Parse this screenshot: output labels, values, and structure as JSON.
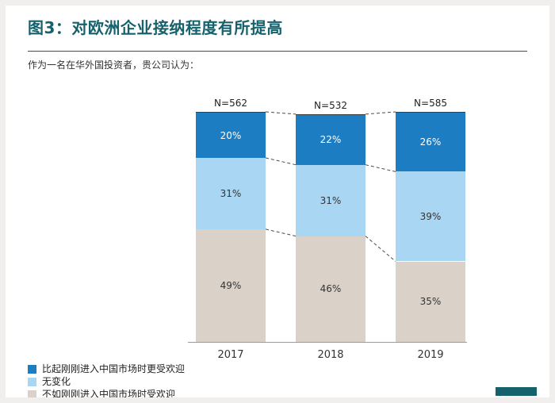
{
  "header": {
    "title": "图3：对欧洲企业接纳程度有所提高",
    "subtitle": "作为一名在华外国投资者，贵公司认为："
  },
  "accent_color": "#16626c",
  "chart_data": {
    "type": "bar",
    "stacked": true,
    "title": "图3：对欧洲企业接纳程度有所提高",
    "xlabel": "",
    "ylabel": "",
    "ylim": [
      0,
      100
    ],
    "grid": false,
    "legend_position": "bottom-left",
    "value_suffix": "%",
    "categories": [
      "2017",
      "2018",
      "2019"
    ],
    "n_labels": [
      "N=562",
      "N=532",
      "N=585"
    ],
    "series": [
      {
        "name": "比起刚刚进入中国市场时更受欢迎",
        "color": "#1d7dc2",
        "label_color": "#ffffff",
        "values": [
          20,
          22,
          26
        ]
      },
      {
        "name": "无变化",
        "color": "#a9d6f3",
        "label_color": "#333333",
        "values": [
          31,
          31,
          39
        ]
      },
      {
        "name": "不如刚刚进入中国市场时受欢迎",
        "color": "#dad2c9",
        "label_color": "#333333",
        "values": [
          49,
          46,
          35
        ]
      }
    ],
    "connector_style": "dashed",
    "connector_color": "#4a4a4a"
  }
}
